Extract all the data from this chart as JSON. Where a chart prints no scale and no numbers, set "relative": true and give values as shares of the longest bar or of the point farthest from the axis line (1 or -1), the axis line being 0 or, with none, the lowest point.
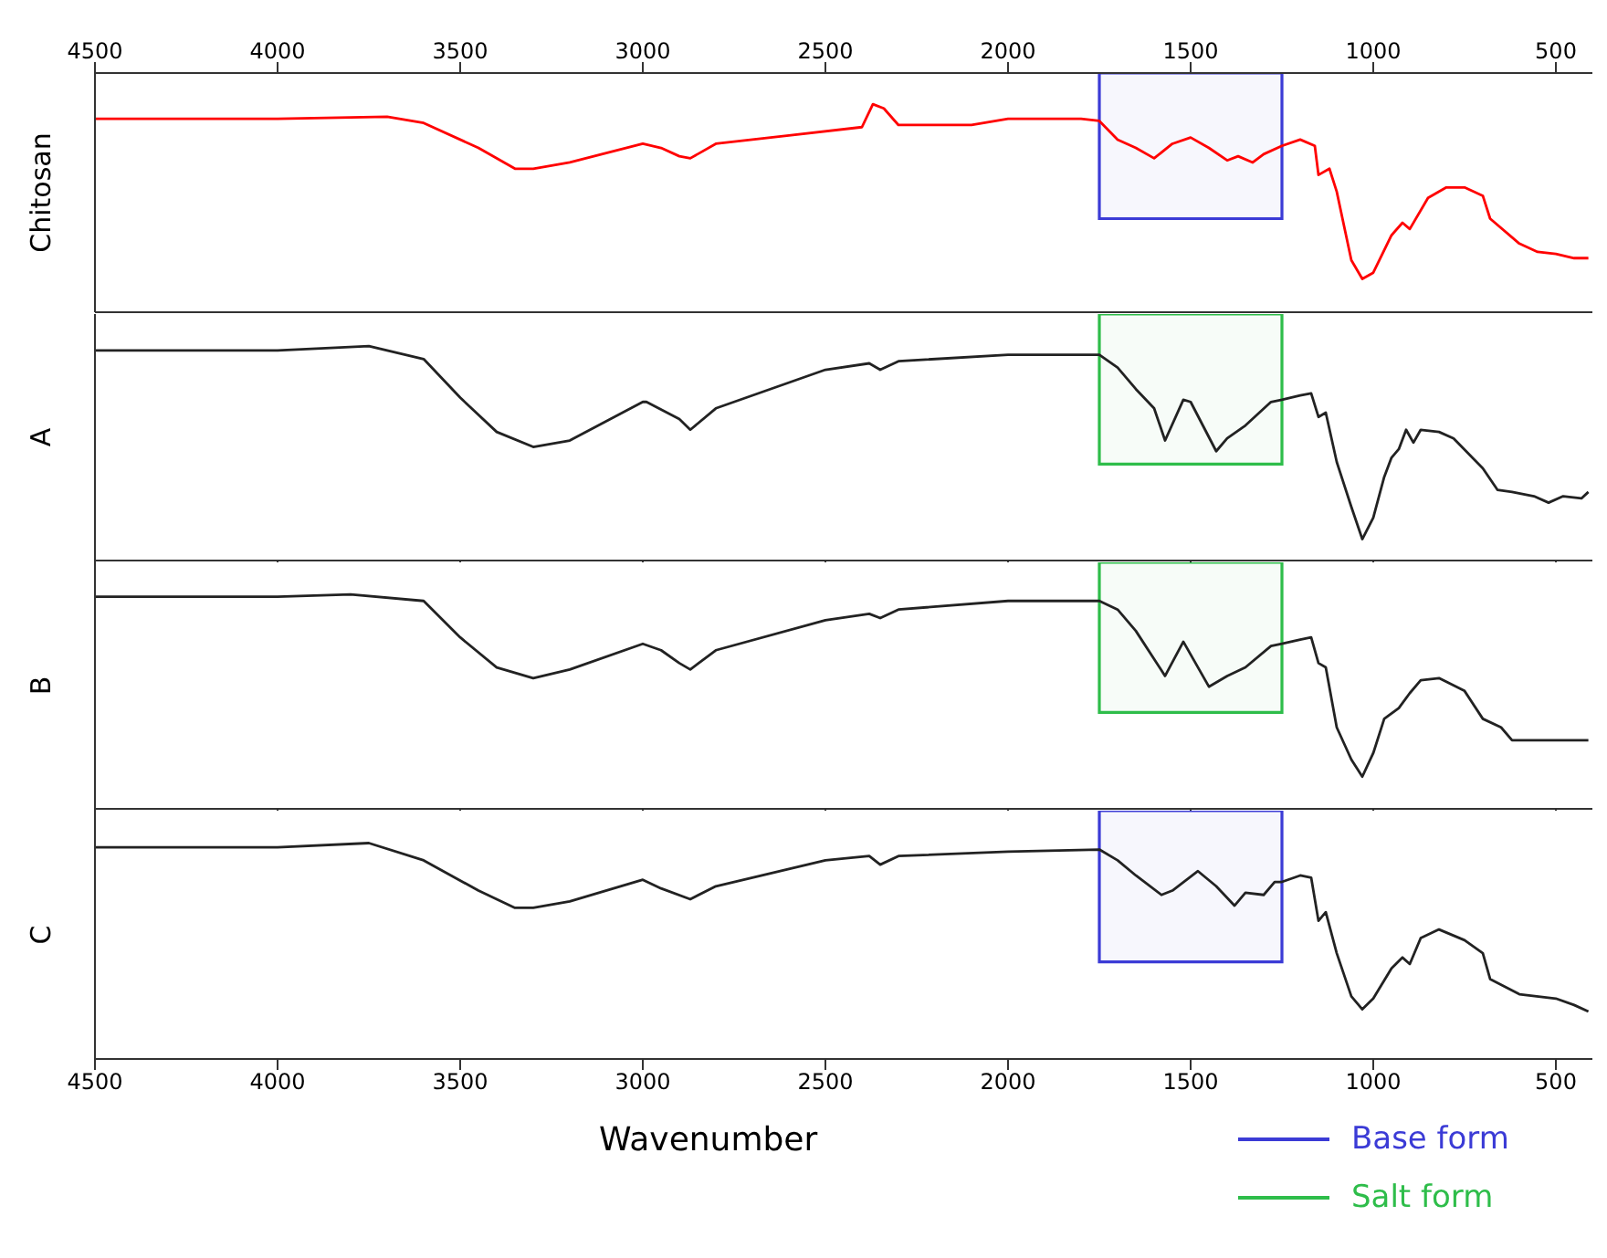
{
  "chart_data": [
    {
      "type": "line",
      "ylabel": "Chitosan",
      "relative": true,
      "xlim": [
        4500,
        400
      ],
      "x2lim": [
        4500,
        400
      ],
      "x2ticks": [
        4500,
        4000,
        3500,
        3000,
        2500,
        2000,
        1500,
        1000,
        500
      ],
      "tick_labels": "x",
      "series": [
        {
          "color": "#ff0000",
          "x": [
            4500,
            4000,
            3700,
            3600,
            3450,
            3350,
            3300,
            3200,
            3000,
            2950,
            2900,
            2870,
            2800,
            2600,
            2400,
            2370,
            2340,
            2300,
            2100,
            2000,
            1800,
            1750,
            1700,
            1650,
            1600,
            1550,
            1500,
            1450,
            1400,
            1370,
            1330,
            1300,
            1250,
            1200,
            1160,
            1150,
            1120,
            1100,
            1060,
            1030,
            1000,
            950,
            920,
            900,
            850,
            800,
            750,
            700,
            680,
            600,
            550,
            500,
            450,
            411
          ],
          "values": [
            0.93,
            0.93,
            0.94,
            0.91,
            0.79,
            0.69,
            0.69,
            0.72,
            0.81,
            0.79,
            0.75,
            0.74,
            0.81,
            0.85,
            0.89,
            1,
            0.98,
            0.9,
            0.9,
            0.93,
            0.93,
            0.92,
            0.83,
            0.79,
            0.74,
            0.81,
            0.84,
            0.79,
            0.73,
            0.75,
            0.72,
            0.76,
            0.8,
            0.83,
            0.8,
            0.66,
            0.69,
            0.58,
            0.25,
            0.16,
            0.19,
            0.37,
            0.43,
            0.4,
            0.55,
            0.6,
            0.6,
            0.56,
            0.45,
            0.33,
            0.29,
            0.28,
            0.26,
            0.26
          ]
        }
      ],
      "bands": [
        {
          "axis": "x",
          "from": 1750,
          "to": 1250,
          "label": "Base form",
          "color": "#3b3bd6"
        }
      ]
    },
    {
      "type": "line",
      "ylabel": "A",
      "relative": true,
      "xlim": [
        4500,
        400
      ],
      "xticks": [
        4500,
        4000,
        3500,
        3000,
        2500,
        2000,
        1500,
        1000,
        500
      ],
      "tick_labels": false,
      "series": [
        {
          "color": "#222222",
          "x": [
            4500,
            4000,
            3750,
            3600,
            3500,
            3400,
            3300,
            3200,
            3000,
            2990,
            2900,
            2870,
            2800,
            2500,
            2380,
            2350,
            2300,
            2000,
            1750,
            1700,
            1650,
            1600,
            1570,
            1520,
            1500,
            1430,
            1400,
            1350,
            1280,
            1250,
            1200,
            1170,
            1150,
            1130,
            1100,
            1060,
            1030,
            1000,
            970,
            950,
            930,
            910,
            890,
            870,
            820,
            780,
            700,
            660,
            620,
            560,
            520,
            480,
            430,
            411
          ],
          "values": [
            0.98,
            0.98,
            1,
            0.94,
            0.76,
            0.6,
            0.53,
            0.56,
            0.74,
            0.74,
            0.66,
            0.61,
            0.71,
            0.89,
            0.92,
            0.89,
            0.93,
            0.96,
            0.96,
            0.9,
            0.8,
            0.71,
            0.56,
            0.75,
            0.74,
            0.51,
            0.57,
            0.63,
            0.74,
            0.75,
            0.77,
            0.78,
            0.67,
            0.69,
            0.46,
            0.25,
            0.1,
            0.2,
            0.39,
            0.48,
            0.52,
            0.61,
            0.55,
            0.61,
            0.6,
            0.57,
            0.43,
            0.33,
            0.32,
            0.3,
            0.27,
            0.3,
            0.29,
            0.32
          ]
        }
      ],
      "bands": [
        {
          "axis": "x",
          "from": 1750,
          "to": 1250,
          "label": "Salt form",
          "color": "#2ebd4a"
        }
      ]
    },
    {
      "type": "line",
      "ylabel": "B",
      "relative": true,
      "xlim": [
        4500,
        400
      ],
      "xticks": [
        4500,
        4000,
        3500,
        3000,
        2500,
        2000,
        1500,
        1000,
        500
      ],
      "tick_labels": false,
      "series": [
        {
          "color": "#222222",
          "x": [
            4500,
            4000,
            3800,
            3600,
            3500,
            3400,
            3300,
            3200,
            3000,
            2950,
            2900,
            2870,
            2800,
            2500,
            2380,
            2350,
            2300,
            2000,
            1750,
            1700,
            1650,
            1570,
            1520,
            1450,
            1400,
            1350,
            1280,
            1250,
            1200,
            1170,
            1150,
            1130,
            1100,
            1060,
            1030,
            1000,
            970,
            930,
            900,
            870,
            820,
            750,
            700,
            650,
            620,
            550,
            450,
            411
          ],
          "values": [
            0.99,
            0.99,
            1,
            0.97,
            0.8,
            0.66,
            0.61,
            0.65,
            0.77,
            0.74,
            0.68,
            0.65,
            0.74,
            0.88,
            0.91,
            0.89,
            0.93,
            0.97,
            0.97,
            0.93,
            0.83,
            0.62,
            0.78,
            0.57,
            0.62,
            0.66,
            0.76,
            0.77,
            0.79,
            0.8,
            0.68,
            0.66,
            0.38,
            0.23,
            0.15,
            0.26,
            0.42,
            0.47,
            0.54,
            0.6,
            0.61,
            0.55,
            0.42,
            0.38,
            0.32,
            0.32,
            0.32,
            0.32
          ]
        }
      ],
      "bands": [
        {
          "axis": "x",
          "from": 1750,
          "to": 1250,
          "color": "#2ebd4a"
        }
      ]
    },
    {
      "type": "line",
      "ylabel": "C",
      "xlabel": "Wavenumber",
      "relative": true,
      "xlim": [
        4500,
        400
      ],
      "xticks": [
        4500,
        4000,
        3500,
        3000,
        2500,
        2000,
        1500,
        1000,
        500
      ],
      "tick_labels": "x",
      "series": [
        {
          "color": "#222222",
          "x": [
            4500,
            4000,
            3750,
            3600,
            3450,
            3350,
            3300,
            3200,
            3000,
            2950,
            2870,
            2800,
            2500,
            2380,
            2350,
            2300,
            2000,
            1750,
            1700,
            1650,
            1580,
            1550,
            1480,
            1430,
            1380,
            1350,
            1300,
            1270,
            1250,
            1200,
            1170,
            1150,
            1130,
            1100,
            1060,
            1030,
            1000,
            950,
            920,
            900,
            870,
            820,
            750,
            700,
            680,
            600,
            500,
            450,
            411
          ],
          "values": [
            0.98,
            0.98,
            1,
            0.92,
            0.78,
            0.7,
            0.7,
            0.73,
            0.83,
            0.79,
            0.74,
            0.8,
            0.92,
            0.94,
            0.9,
            0.94,
            0.96,
            0.97,
            0.92,
            0.85,
            0.76,
            0.78,
            0.87,
            0.8,
            0.71,
            0.77,
            0.76,
            0.82,
            0.82,
            0.85,
            0.84,
            0.64,
            0.68,
            0.49,
            0.29,
            0.23,
            0.28,
            0.42,
            0.47,
            0.44,
            0.56,
            0.6,
            0.55,
            0.49,
            0.37,
            0.3,
            0.28,
            0.25,
            0.22
          ]
        }
      ],
      "bands": [
        {
          "axis": "x",
          "from": 1750,
          "to": 1250,
          "color": "#3b3bd6"
        }
      ]
    }
  ]
}
